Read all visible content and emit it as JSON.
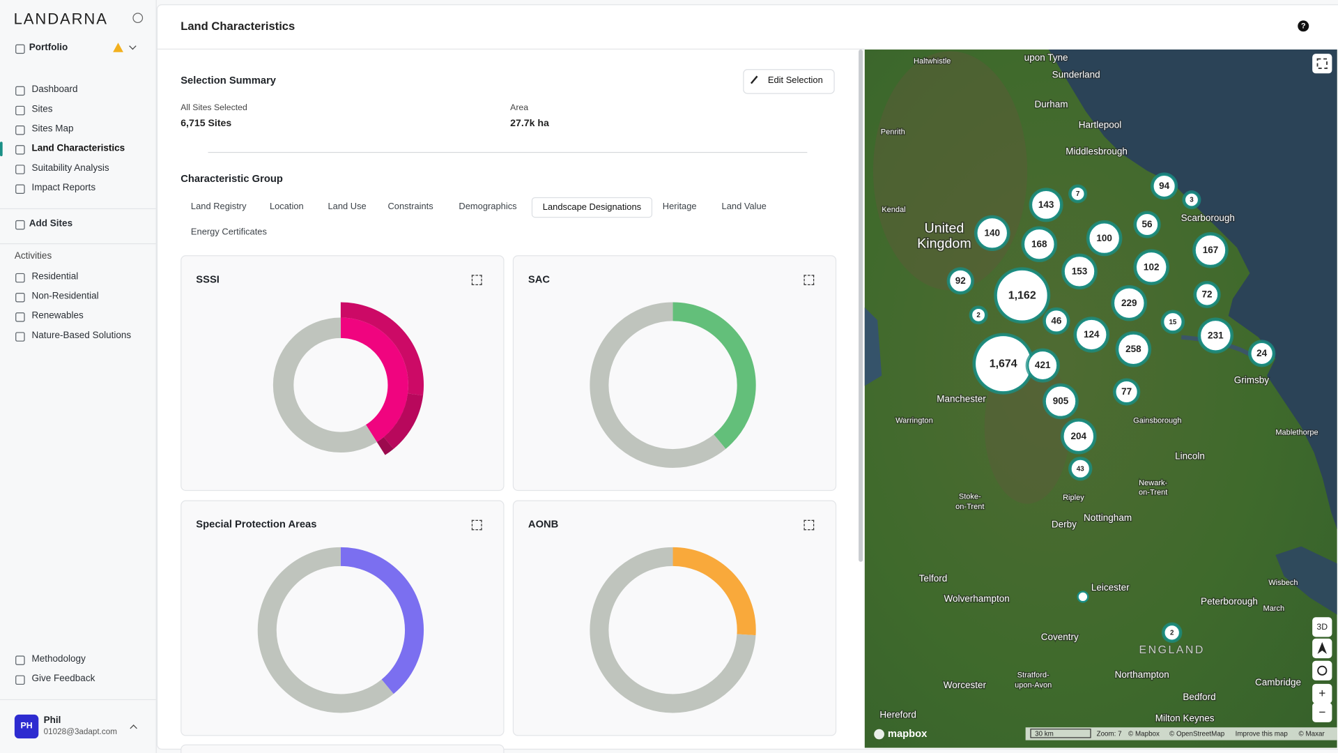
{
  "sidebar": {
    "brand": "LANDARNA",
    "portfolio": "Portfolio",
    "nav": [
      "Dashboard",
      "Sites",
      "Sites Map",
      "Land Characteristics",
      "Suitability Analysis",
      "Impact Reports"
    ],
    "active_nav": 3,
    "add_sites": "Add Sites",
    "activities_heading": "Activities",
    "activities": [
      "Residential",
      "Non-Residential",
      "Renewables",
      "Nature-Based Solutions"
    ],
    "footer_links": [
      "Methodology",
      "Give Feedback"
    ],
    "user": {
      "initials": "PH",
      "name": "Phil",
      "email": "01028@3adapt.com"
    }
  },
  "header": {
    "title": "Land Characteristics"
  },
  "summary": {
    "title": "Selection Summary",
    "edit_button": "Edit Selection",
    "fields": [
      {
        "label": "All Sites Selected",
        "value": "6,715 Sites"
      },
      {
        "label": "Area",
        "value": "27.7k ha"
      }
    ]
  },
  "characteristic_group": {
    "title": "Characteristic Group",
    "tabs": [
      "Land Registry",
      "Location",
      "Land Use",
      "Constraints",
      "Demographics",
      "Landscape Designations",
      "Heritage",
      "Land Value",
      "Energy Certificates"
    ],
    "active_tab": 5
  },
  "charts": [
    {
      "type": "sunburst",
      "title": "SSSI",
      "values": [
        41,
        59
      ],
      "colors": [
        "#f0047f",
        "#bfc4bd"
      ],
      "outer_values": [
        27,
        12,
        2
      ],
      "outer_colors": [
        "#cc0a66",
        "#b8085c",
        "#9c0a4e"
      ]
    },
    {
      "type": "donut",
      "title": "SAC",
      "values": [
        39,
        61
      ],
      "colors": [
        "#63bf7a",
        "#bfc4bd"
      ]
    },
    {
      "type": "donut",
      "title": "Special Protection Areas",
      "values": [
        39,
        61
      ],
      "colors": [
        "#7b6ff0",
        "#bfc4bd"
      ]
    },
    {
      "type": "donut",
      "title": "AONB",
      "values": [
        26,
        74
      ],
      "colors": [
        "#f9a93b",
        "#bfc4bd"
      ]
    }
  ],
  "map": {
    "clusters": [
      "143",
      "7",
      "94",
      "3",
      "140",
      "168",
      "100",
      "56",
      "167",
      "153",
      "102",
      "92",
      "1,162",
      "229",
      "72",
      "2",
      "46",
      "15",
      "124",
      "258",
      "231",
      "24",
      "1,674",
      "421",
      "905",
      "77",
      "204",
      "43",
      "2"
    ],
    "places": [
      "upon Tyne",
      "Sunderland",
      "Durham",
      "Hartlepool",
      "Middlesbrough",
      "Haltwhistle",
      "Penrith",
      "Kendal",
      "Scarborough",
      "Manchester",
      "Warrington",
      "Lincoln",
      "Grimsby",
      "Gainsborough",
      "Mablethorpe",
      "Stoke-",
      "on-Trent",
      "Nottingham",
      "Derby",
      "Ripley",
      "Newark-",
      "on-Trent",
      "Telford",
      "Wolverhampton",
      "Leicester",
      "Coventry",
      "Peterborough",
      "Wisbech",
      "March",
      "Northampton",
      "Worcester",
      "Stratford-",
      "upon-Avon",
      "Cambridge",
      "Bedford",
      "Milton Keynes",
      "Hereford"
    ],
    "country": [
      "United",
      "Kingdom"
    ],
    "region": "ENGLAND",
    "logo": "mapbox",
    "scale": "30 km",
    "zoom": "Zoom: 7",
    "attribution": [
      "© Mapbox",
      "© OpenStreetMap",
      "Improve this map",
      "© Maxar"
    ],
    "controls": [
      "3D",
      "+",
      "−"
    ]
  }
}
